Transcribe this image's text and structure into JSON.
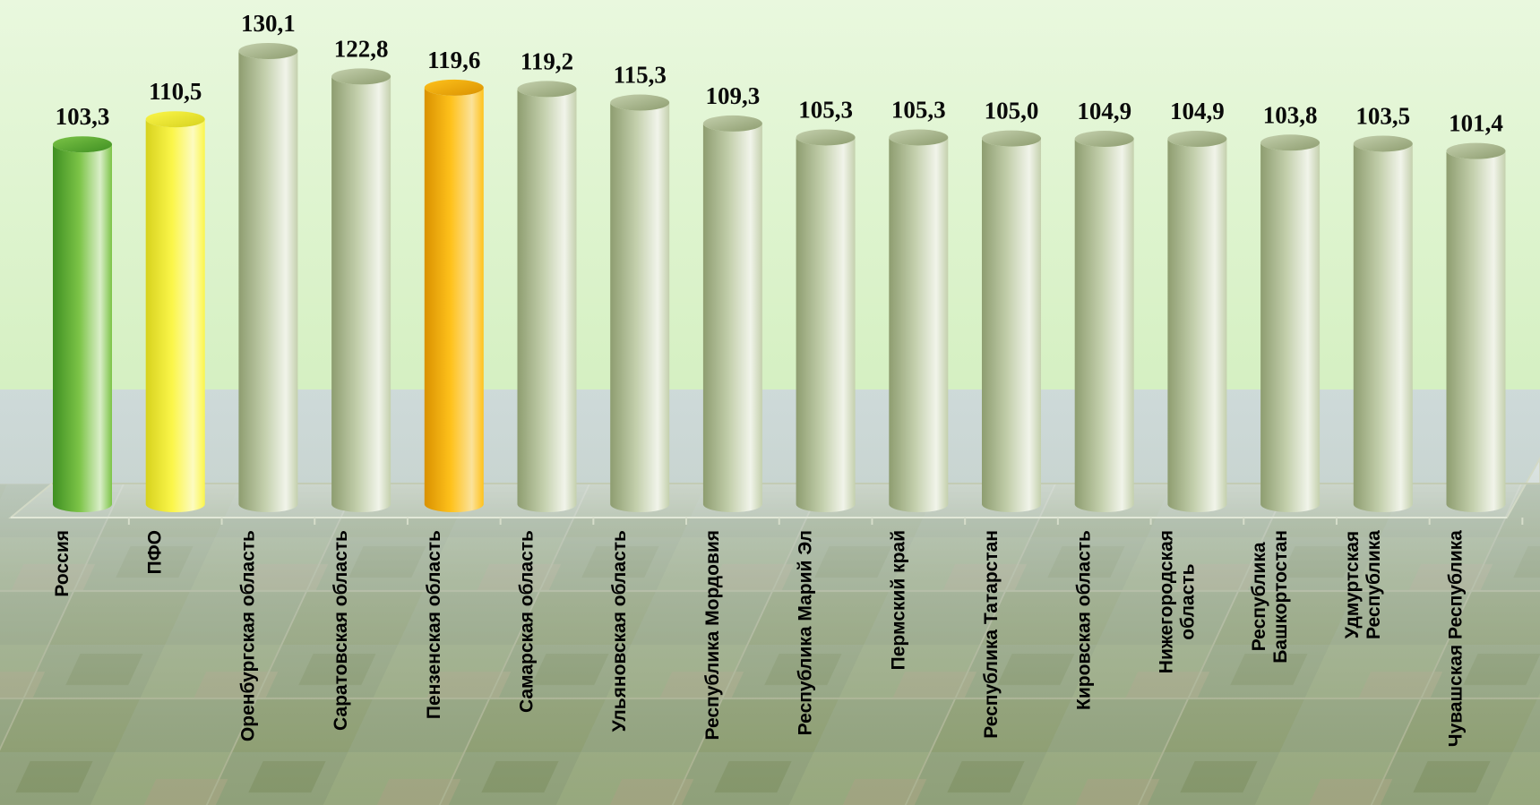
{
  "chart_data": {
    "type": "bar",
    "categories": [
      "Россия",
      "ПФО",
      "Оренбургская область",
      "Саратовская область",
      "Пензенская область",
      "Самарская область",
      "Ульяновская область",
      "Республика Мордовия",
      "Республика Марий Эл",
      "Пермский край",
      "Республика Татарстан",
      "Кировская область",
      "Нижегородская область",
      "Республика Башкортостан",
      "Удмуртская Республика",
      "Чувашская Республика"
    ],
    "category_lines": [
      [
        "Россия"
      ],
      [
        "ПФО"
      ],
      [
        "Оренбургская область"
      ],
      [
        "Саратовская область"
      ],
      [
        "Пензенская область"
      ],
      [
        "Самарская область"
      ],
      [
        "Ульяновская область"
      ],
      [
        "Республика Мордовия"
      ],
      [
        "Республика Марий Эл"
      ],
      [
        "Пермский край"
      ],
      [
        "Республика Татарстан"
      ],
      [
        "Кировская область"
      ],
      [
        "Нижегородская",
        "область"
      ],
      [
        "Республика",
        "Башкортостан"
      ],
      [
        "Удмуртская",
        "Республика"
      ],
      [
        "Чувашская Республика"
      ]
    ],
    "values": [
      103.3,
      110.5,
      130.1,
      122.8,
      119.6,
      119.2,
      115.3,
      109.3,
      105.3,
      105.3,
      105.0,
      104.9,
      104.9,
      103.8,
      103.5,
      101.4
    ],
    "value_labels": [
      "103,3",
      "110,5",
      "130,1",
      "122,8",
      "119,6",
      "119,2",
      "115,3",
      "109,3",
      "105,3",
      "105,3",
      "105,0",
      "104,9",
      "104,9",
      "103,8",
      "103,5",
      "101,4"
    ],
    "bar_colors": [
      "green",
      "yellow",
      "sage",
      "sage",
      "orange",
      "sage",
      "sage",
      "sage",
      "sage",
      "sage",
      "sage",
      "sage",
      "sage",
      "sage",
      "sage",
      "sage"
    ],
    "ylim": [
      0,
      130.1
    ],
    "grid": false,
    "legend": "none",
    "style": "3d-cylinder"
  },
  "palette": {
    "green": [
      "#3f8f22",
      "#7cc447",
      "#d9eec8"
    ],
    "yellow": [
      "#d7d21e",
      "#fbf64a",
      "#fdfbc0"
    ],
    "orange": [
      "#d99100",
      "#ffc21c",
      "#fbe29a"
    ],
    "sage": [
      "#8e9d70",
      "#c4d0ad",
      "#f1f4ea"
    ],
    "sky_top": "#dff4d0",
    "sky_mid": "#cfe5c7"
  }
}
